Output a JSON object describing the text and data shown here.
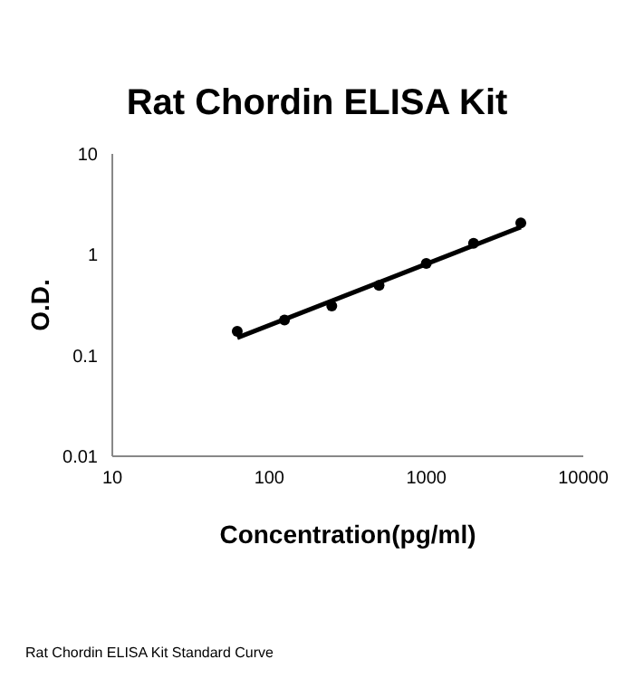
{
  "chart_data": {
    "type": "scatter",
    "title": "Rat Chordin ELISA Kit",
    "xlabel": "Concentration(pg/ml)",
    "ylabel": "O.D.",
    "log": "xy",
    "marker": "circle",
    "xlim": [
      10,
      10000
    ],
    "xticks": [
      10,
      100,
      1000,
      10000
    ],
    "ylim": [
      0.01,
      10
    ],
    "yticks": [
      0.01,
      0.1,
      1,
      10
    ],
    "series": [
      {
        "color": "#000000",
        "x": [
          62.5,
          125,
          250,
          500,
          1000,
          2000,
          4000
        ],
        "values": [
          0.174,
          0.225,
          0.31,
          0.495,
          0.82,
          1.3,
          2.07
        ]
      },
      {
        "type": "line",
        "color": "#000000",
        "marker": "none",
        "line_style": "solid",
        "x": [
          62.5,
          4000
        ],
        "values": [
          0.15,
          1.88
        ]
      }
    ],
    "annotations": [
      "Rat Chordin ELISA Kit Standard Curve"
    ]
  }
}
